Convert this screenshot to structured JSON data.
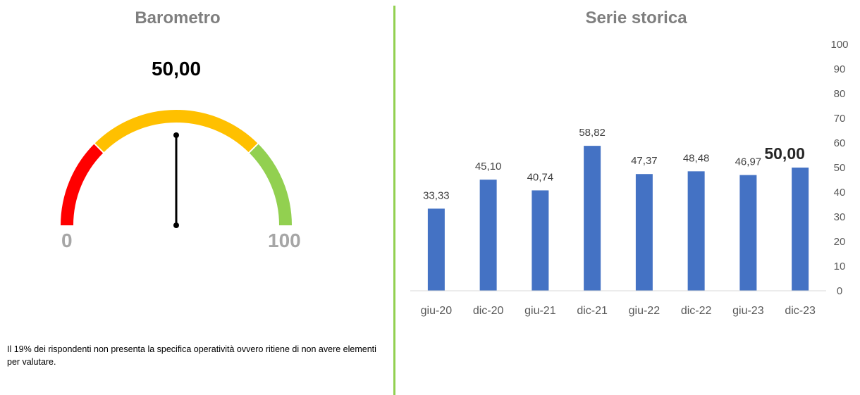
{
  "barometer": {
    "title": "Barometro",
    "value_label": "50,00",
    "min_label": "0",
    "max_label": "100",
    "value": 50,
    "min": 0,
    "max": 100,
    "segments": [
      {
        "from": 0,
        "to": 25,
        "color": "#ff0000"
      },
      {
        "from": 25,
        "to": 75,
        "color": "#ffc000"
      },
      {
        "from": 75,
        "to": 100,
        "color": "#92d050"
      }
    ],
    "needle_color": "#000000"
  },
  "note": "Il 19% dei rispondenti non presenta la specifica operatività ovvero ritiene di non avere elementi per valutare.",
  "history": {
    "title": "Serie storica"
  },
  "chart_data": {
    "type": "bar",
    "title": "Serie storica",
    "categories": [
      "giu-20",
      "dic-20",
      "giu-21",
      "dic-21",
      "giu-22",
      "dic-22",
      "giu-23",
      "dic-23"
    ],
    "values": [
      33.33,
      45.1,
      40.74,
      58.82,
      47.37,
      48.48,
      46.97,
      50.0
    ],
    "value_labels": [
      "33,33",
      "45,10",
      "40,74",
      "58,82",
      "47,37",
      "48,48",
      "46,97",
      "50,00"
    ],
    "ylim": [
      0,
      100
    ],
    "y_ticks": [
      0,
      10,
      20,
      30,
      40,
      50,
      60,
      70,
      80,
      90,
      100
    ],
    "y_axis_position": "right",
    "bar_color": "#4472c4",
    "grid": false,
    "xlabel": "",
    "ylabel": ""
  },
  "colors": {
    "divider": "#92d050",
    "title_gray": "#7f7f7f"
  }
}
